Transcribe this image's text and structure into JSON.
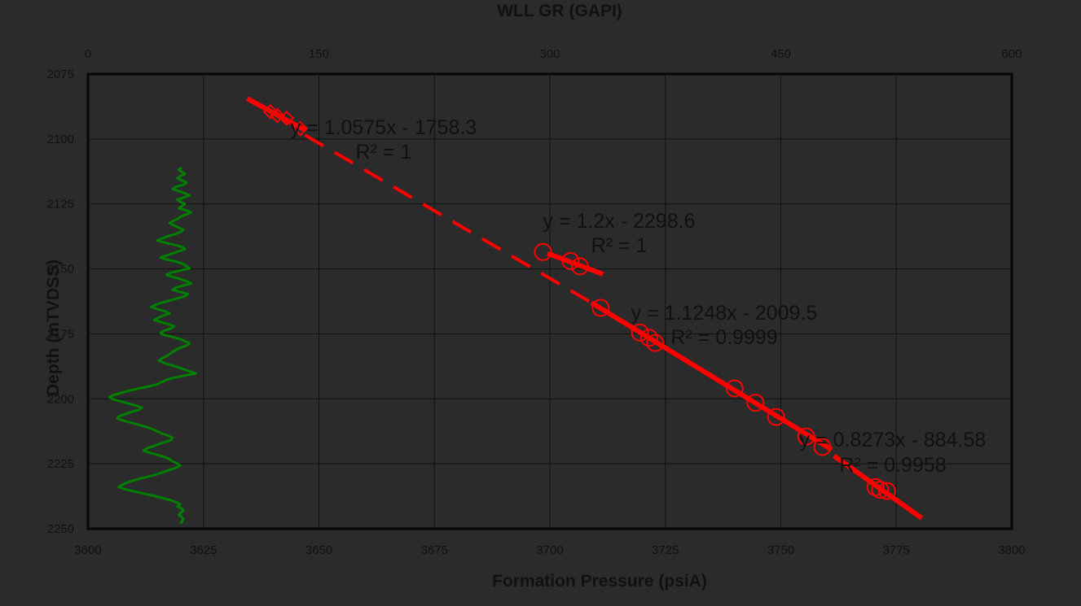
{
  "chart_data": {
    "type": "scatter",
    "title": "",
    "xlabel": "Formation Pressure (psiA)",
    "x2label": "WLL GR (GAPI)",
    "ylabel": "Depth (mTVDSS)",
    "xlim": [
      3600,
      3800
    ],
    "x2lim": [
      0,
      600
    ],
    "ylim": [
      2075,
      2250
    ],
    "y_inverted": true,
    "grid": true,
    "x_ticks": [
      "3600",
      "3625",
      "3650",
      "3675",
      "3700",
      "3725",
      "3750",
      "3775",
      "3800"
    ],
    "x2_ticks": [
      "0",
      "150",
      "300",
      "450",
      "600"
    ],
    "y_ticks": [
      "2075",
      "2100",
      "2125",
      "2150",
      "2175",
      "2200",
      "2225",
      "2250"
    ],
    "colors": {
      "pressure": "#ff0000",
      "gamma_ray": "#008000",
      "grid": "#111111",
      "frame": "#000000"
    },
    "series": [
      {
        "marker": "diamond",
        "points": [
          [
            3639.5,
            2089.5
          ],
          [
            3641.0,
            2091.0
          ],
          [
            3643.0,
            2092.0
          ],
          [
            3646.0,
            2096.0
          ]
        ],
        "fit": {
          "x_range": [
            3634.5,
            3647.0
          ],
          "equation": "y = 1.0575x - 1758.3",
          "r2": "R² = 1"
        }
      },
      {
        "marker": "circle",
        "points": [
          [
            3698.5,
            2143.5
          ],
          [
            3704.5,
            2147.0
          ],
          [
            3706.5,
            2149.0
          ]
        ],
        "fit": {
          "x_range": [
            3699.5,
            3711.5
          ],
          "equation": "y = 1.2x - 2298.6",
          "r2": "R² = 1"
        }
      },
      {
        "marker": "circle",
        "points": [
          [
            3711.0,
            2165.0
          ],
          [
            3719.5,
            2174.5
          ],
          [
            3721.5,
            2176.5
          ],
          [
            3722.8,
            2178.5
          ],
          [
            3740.0,
            2196.0
          ],
          [
            3744.5,
            2201.5
          ],
          [
            3749.0,
            2207.0
          ]
        ],
        "fit": {
          "x_range": [
            3709.0,
            3761.0
          ],
          "equation": "y = 1.1248x - 2009.5",
          "r2": "R² = 0.9999"
        }
      },
      {
        "marker": "circle",
        "points": [
          [
            3755.5,
            2214.5
          ],
          [
            3759.0,
            2218.5
          ],
          [
            3770.5,
            2234.0
          ],
          [
            3771.5,
            2235.0
          ],
          [
            3773.0,
            2235.5
          ]
        ],
        "fit": {
          "x_range": [
            3761.5,
            3780.5
          ],
          "equation": "y = 0.8273x - 884.58",
          "r2": "R² = 0.9958"
        }
      }
    ],
    "dashed_extension": {
      "from": [
        3647.0,
        2098.5
      ],
      "to": [
        3709.0,
        2163.0
      ]
    },
    "gamma_ray": {
      "depth_start": 2111,
      "depth_end": 2248,
      "samples": [
        61,
        59,
        61,
        63,
        60,
        58,
        61,
        64,
        62,
        57,
        55,
        59,
        63,
        66,
        62,
        58,
        60,
        63,
        61,
        59,
        64,
        67,
        63,
        60,
        58,
        55,
        53,
        56,
        59,
        62,
        60,
        57,
        52,
        48,
        45,
        50,
        56,
        61,
        63,
        59,
        55,
        51,
        47,
        52,
        58,
        62,
        64,
        66,
        60,
        54,
        51,
        55,
        60,
        64,
        67,
        62,
        57,
        55,
        60,
        65,
        63,
        58,
        53,
        48,
        44,
        41,
        45,
        50,
        53,
        49,
        46,
        43,
        47,
        52,
        56,
        54,
        50,
        47,
        49,
        55,
        60,
        63,
        66,
        64,
        60,
        57,
        55,
        53,
        51,
        48,
        46,
        49,
        53,
        58,
        62,
        66,
        70,
        63,
        56,
        51,
        48,
        45,
        40,
        33,
        27,
        22,
        17,
        14,
        16,
        21,
        26,
        31,
        35,
        33,
        28,
        24,
        20,
        19,
        23,
        28,
        33,
        38,
        42,
        45,
        48,
        52,
        55,
        54,
        50,
        46,
        42,
        38,
        36,
        40,
        45,
        50,
        53,
        55,
        58,
        60,
        57,
        53,
        49,
        45,
        40,
        34,
        29,
        25,
        22,
        20,
        24,
        30,
        36,
        42,
        48,
        53,
        57,
        60,
        58,
        61,
        62,
        60,
        59,
        61,
        62,
        61,
        60
      ]
    }
  }
}
